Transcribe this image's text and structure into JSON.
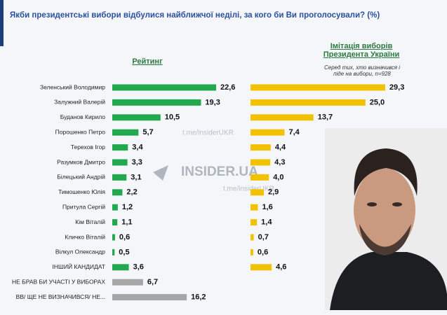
{
  "chart_data": {
    "type": "bar",
    "orientation": "horizontal",
    "title": "Якби президентські вибори відбулися найближчої неділі, за кого би Ви проголосували? (%)",
    "categories": [
      "Зеленський Володимир",
      "Залужний Валерій",
      "Буданов Кирило",
      "Порошенко Петро",
      "Терехов Ігор",
      "Разумков Дмитро",
      "Білецький Андрій",
      "Тимошенко Юлія",
      "Притула Сергій",
      "Кім Віталій",
      "Кличко Віталій",
      "Вілкул Олександр",
      "ІНШИЙ КАНДИДАТ",
      "НЕ БРАВ БИ УЧАСТІ У ВИБОРАХ",
      "ВВ/ ЩЕ НЕ ВИЗНАЧИВСЯ/ НЕ..."
    ],
    "series": [
      {
        "name": "Рейтинг",
        "color": "#22a94f",
        "colors": [
          "#22a94f",
          "#22a94f",
          "#22a94f",
          "#22a94f",
          "#22a94f",
          "#22a94f",
          "#22a94f",
          "#22a94f",
          "#22a94f",
          "#22a94f",
          "#22a94f",
          "#22a94f",
          "#22a94f",
          "#a6a6a6",
          "#a6a6a6"
        ],
        "values": [
          22.6,
          19.3,
          10.5,
          5.7,
          3.4,
          3.3,
          3.1,
          2.2,
          1.2,
          1.1,
          0.6,
          0.5,
          3.6,
          6.7,
          16.2
        ],
        "value_labels": [
          "22,6",
          "19,3",
          "10,5",
          "5,7",
          "3,4",
          "3,3",
          "3,1",
          "2,2",
          "1,2",
          "1,1",
          "0,6",
          "0,5",
          "3,6",
          "6,7",
          "16,2"
        ]
      },
      {
        "name": "Імітація виборів Президента України",
        "subtitle": "Серед тих, хто визначився і піде на вибори, n=928",
        "color": "#f2c200",
        "values": [
          29.3,
          25.0,
          13.7,
          7.4,
          4.4,
          4.3,
          4.0,
          2.9,
          1.6,
          1.4,
          0.7,
          0.6,
          4.6,
          null,
          null
        ],
        "value_labels": [
          "29,3",
          "25,0",
          "13,7",
          "7,4",
          "4,4",
          "4,3",
          "4,0",
          "2,9",
          "1,6",
          "1,4",
          "0,7",
          "0,6",
          "4,6",
          null,
          null
        ]
      }
    ],
    "watermarks": [
      "t.me/insiderUKR",
      "INSIDER.UA",
      "t.me/insiderUKR"
    ]
  }
}
